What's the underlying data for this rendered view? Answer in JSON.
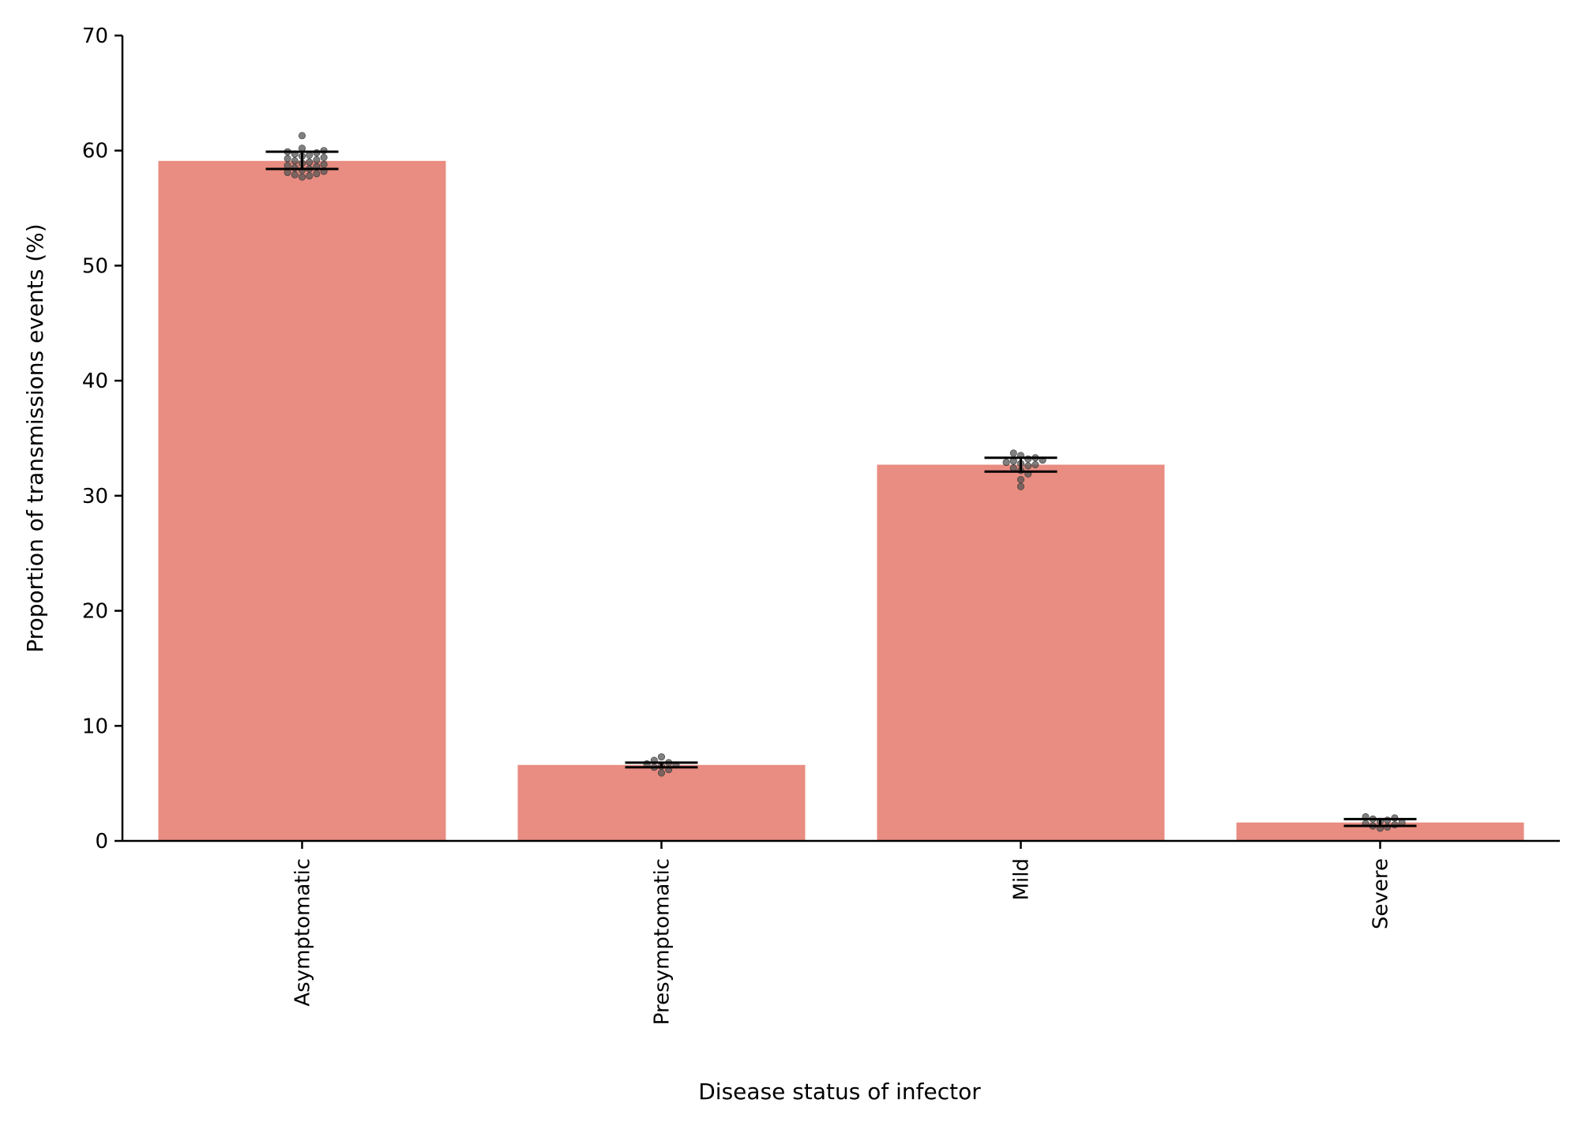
{
  "chart_data": {
    "type": "bar",
    "title": "",
    "xlabel": "Disease status of infector",
    "ylabel": "Proportion of transmissions events (%)",
    "categories": [
      "Asymptomatic",
      "Presymptomatic",
      "Mild",
      "Severe"
    ],
    "values": [
      59.1,
      6.6,
      32.7,
      1.6
    ],
    "error_bars": [
      {
        "low": 58.4,
        "high": 59.9
      },
      {
        "low": 6.4,
        "high": 6.8
      },
      {
        "low": 32.1,
        "high": 33.3
      },
      {
        "low": 1.3,
        "high": 1.9
      }
    ],
    "swarm_points": [
      [
        57.7,
        57.8,
        57.9,
        58.0,
        58.1,
        58.2,
        58.3,
        58.4,
        58.5,
        58.6,
        58.7,
        58.8,
        58.9,
        59.0,
        59.1,
        59.2,
        59.3,
        59.4,
        59.5,
        59.6,
        59.7,
        59.8,
        59.9,
        60.0,
        60.2,
        61.3
      ],
      [
        5.9,
        6.2,
        6.4,
        6.5,
        6.6,
        6.7,
        6.8,
        7.0,
        7.3
      ],
      [
        30.8,
        31.4,
        31.9,
        32.2,
        32.4,
        32.6,
        32.7,
        32.8,
        32.9,
        33.0,
        33.1,
        33.2,
        33.3,
        33.5,
        33.7
      ],
      [
        1.1,
        1.2,
        1.3,
        1.4,
        1.5,
        1.6,
        1.7,
        1.8,
        1.9,
        2.0,
        2.1
      ]
    ],
    "ylim": [
      0,
      70
    ],
    "yticks": [
      "0",
      "10",
      "20",
      "30",
      "40",
      "50",
      "60",
      "70"
    ],
    "grid": false,
    "legend": "none",
    "colors": {
      "bar": "#e98c81",
      "point": "#555555",
      "error_bar": "#000000",
      "axis": "#000000"
    }
  }
}
